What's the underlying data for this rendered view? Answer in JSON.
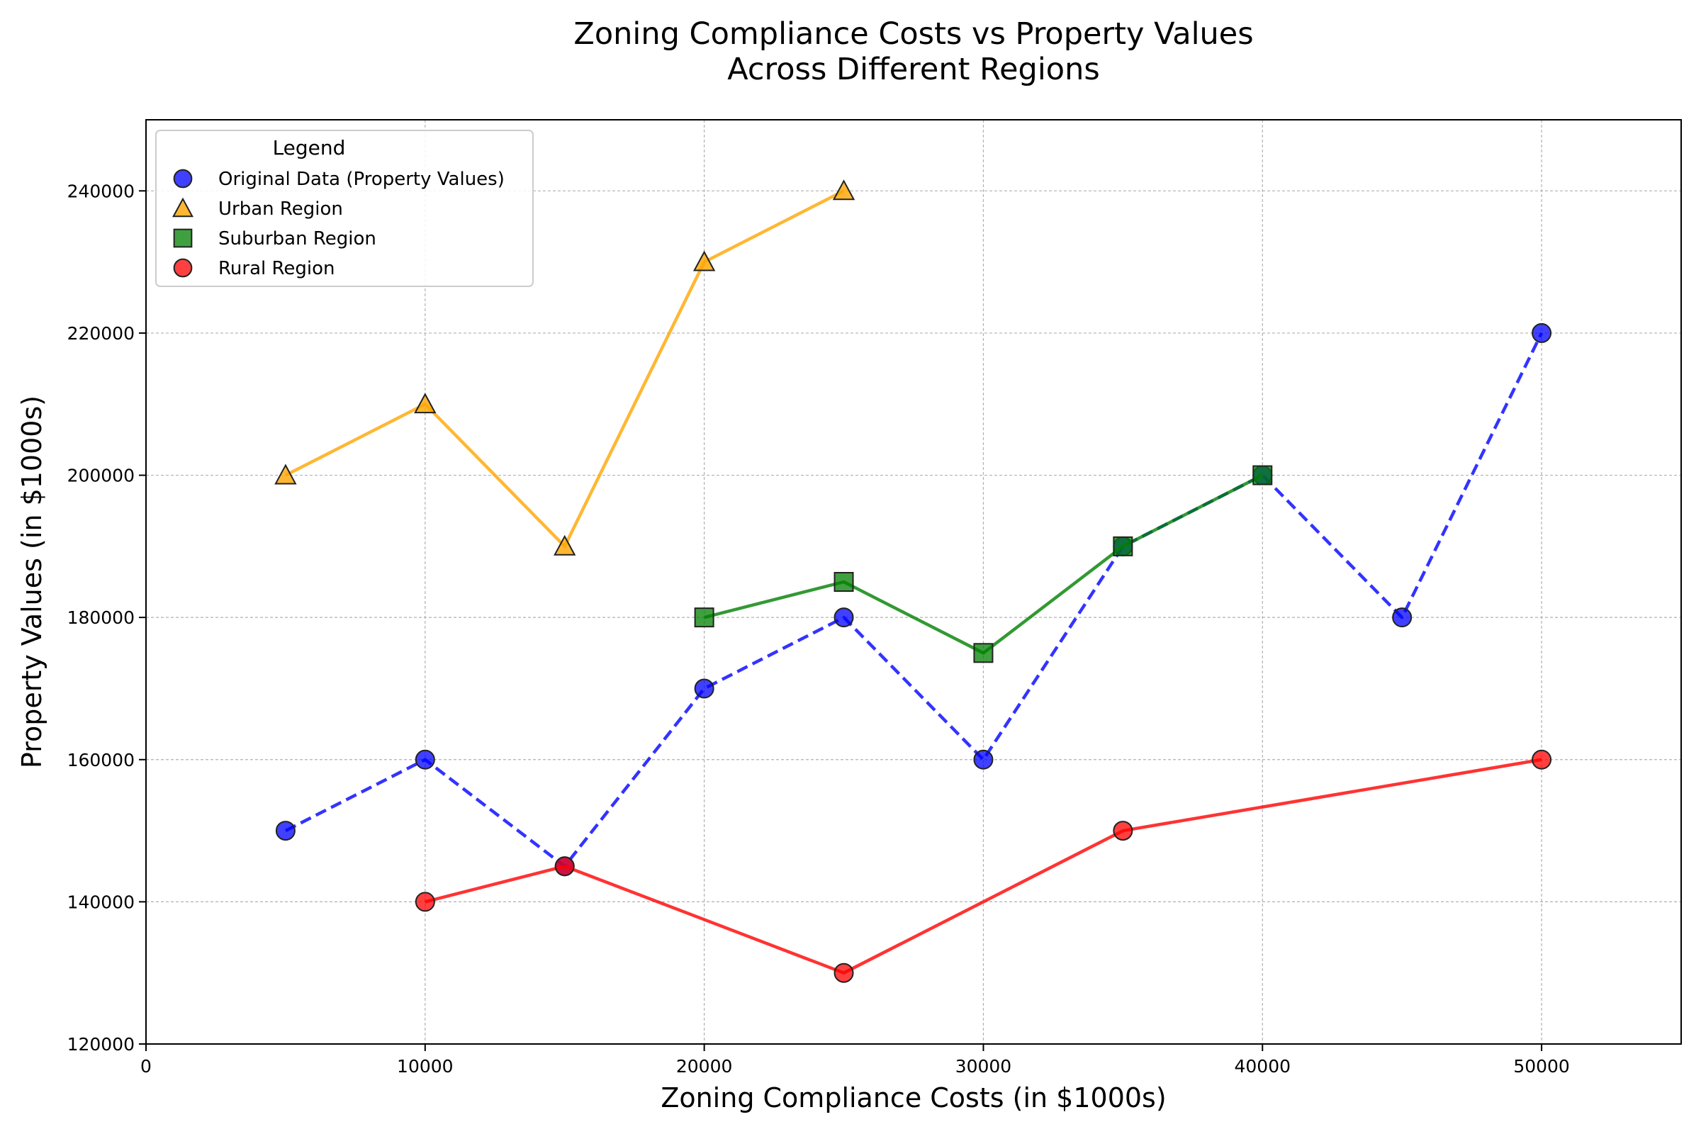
{
  "chart_data": {
    "type": "scatter",
    "title": "Zoning Compliance Costs vs Property Values\nAcross Different Regions",
    "xlabel": "Zoning Compliance Costs (in $1000s)",
    "ylabel": "Property Values (in $1000s)",
    "xlim": [
      0,
      55000
    ],
    "ylim": [
      120000,
      250000
    ],
    "xticks": [
      0,
      10000,
      20000,
      30000,
      40000,
      50000
    ],
    "yticks": [
      120000,
      140000,
      160000,
      180000,
      200000,
      220000,
      240000
    ],
    "grid": true,
    "legend": {
      "title": "Legend",
      "placement": "top-left"
    },
    "series": [
      {
        "name": "Original Data (Property Values)",
        "marker": "circle",
        "line": "dashed",
        "color": "#0000ff",
        "x": [
          5000,
          10000,
          15000,
          20000,
          25000,
          30000,
          35000,
          40000,
          45000,
          50000
        ],
        "y": [
          150000,
          160000,
          145000,
          170000,
          180000,
          160000,
          190000,
          200000,
          180000,
          220000
        ]
      },
      {
        "name": "Urban Region",
        "marker": "triangle",
        "line": "solid",
        "color": "#ffa500",
        "x": [
          5000,
          10000,
          15000,
          20000,
          25000
        ],
        "y": [
          200000,
          210000,
          190000,
          230000,
          240000
        ]
      },
      {
        "name": "Suburban Region",
        "marker": "square",
        "line": "solid",
        "color": "#008000",
        "x": [
          20000,
          25000,
          30000,
          35000,
          40000
        ],
        "y": [
          180000,
          185000,
          175000,
          190000,
          200000
        ]
      },
      {
        "name": "Rural Region",
        "marker": "circle",
        "line": "solid",
        "color": "#ff0000",
        "x": [
          10000,
          15000,
          25000,
          35000,
          50000
        ],
        "y": [
          140000,
          145000,
          130000,
          150000,
          160000
        ]
      }
    ]
  }
}
